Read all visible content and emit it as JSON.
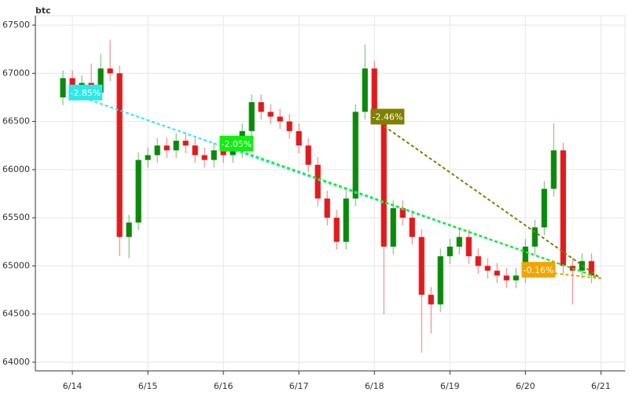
{
  "chart_data": {
    "type": "candlestick",
    "title": "btc",
    "x": [
      13.875,
      14,
      14.125,
      14.25,
      14.375,
      14.5,
      14.625,
      14.75,
      14.875,
      15,
      15.125,
      15.25,
      15.375,
      15.5,
      15.625,
      15.75,
      15.875,
      16,
      16.125,
      16.25,
      16.375,
      16.5,
      16.625,
      16.75,
      16.875,
      17,
      17.125,
      17.25,
      17.375,
      17.5,
      17.625,
      17.75,
      17.875,
      18,
      18.125,
      18.25,
      18.375,
      18.5,
      18.625,
      18.75,
      18.875,
      19,
      19.125,
      19.25,
      19.375,
      19.5,
      19.625,
      19.75,
      19.875,
      20,
      20.125,
      20.25,
      20.375,
      20.5,
      20.625,
      20.75,
      20.875
    ],
    "open": [
      66750,
      66950,
      66850,
      66900,
      66800,
      67050,
      67000,
      65300,
      65450,
      66100,
      66150,
      66250,
      66200,
      66300,
      66250,
      66150,
      66100,
      66200,
      66150,
      66200,
      66400,
      66700,
      66600,
      66550,
      66500,
      66400,
      66250,
      66050,
      65700,
      65500,
      65250,
      65700,
      66600,
      67050,
      66550,
      65200,
      65600,
      65500,
      65300,
      64700,
      64600,
      65100,
      65200,
      65300,
      65100,
      65000,
      64950,
      64900,
      64850,
      64900,
      65200,
      65400,
      65800,
      66200,
      65000,
      64950,
      65050
    ],
    "high": [
      67030,
      67030,
      66980,
      67100,
      67200,
      67350,
      67080,
      65530,
      66180,
      66230,
      66330,
      66330,
      66380,
      66380,
      66330,
      66230,
      66280,
      66280,
      66280,
      66480,
      66780,
      66780,
      66680,
      66630,
      66580,
      66480,
      66330,
      66130,
      65780,
      65580,
      65780,
      66680,
      67300,
      67130,
      66630,
      65680,
      65680,
      65580,
      65380,
      64780,
      65180,
      65280,
      65380,
      65380,
      65180,
      65080,
      65030,
      64980,
      64980,
      65280,
      65480,
      65880,
      66480,
      66280,
      65080,
      65130,
      65130
    ],
    "low": [
      66670,
      66770,
      66770,
      66720,
      66720,
      66920,
      65100,
      65080,
      65370,
      66020,
      66070,
      66120,
      66120,
      66170,
      66070,
      66020,
      66020,
      66070,
      66070,
      66120,
      66320,
      66520,
      66470,
      66420,
      66320,
      66170,
      65970,
      65620,
      65420,
      65170,
      65170,
      65620,
      66520,
      66470,
      64500,
      65120,
      65420,
      65220,
      64100,
      64300,
      64520,
      65020,
      65120,
      65020,
      64920,
      64870,
      64820,
      64770,
      64770,
      64820,
      65120,
      65320,
      65720,
      64920,
      64600,
      64870,
      64820
    ],
    "close": [
      66950,
      66850,
      66900,
      66800,
      67050,
      67000,
      65300,
      65450,
      66100,
      66150,
      66250,
      66200,
      66300,
      66250,
      66150,
      66100,
      66200,
      66150,
      66200,
      66400,
      66700,
      66600,
      66550,
      66500,
      66400,
      66250,
      66050,
      65700,
      65500,
      65250,
      65700,
      66600,
      67050,
      66550,
      65200,
      65600,
      65500,
      65300,
      64700,
      64600,
      65100,
      65200,
      65300,
      65100,
      65000,
      64950,
      64900,
      64850,
      64900,
      65200,
      65400,
      65800,
      66200,
      65000,
      64950,
      65050,
      64900
    ],
    "up_color": "#0a8a0a",
    "down_color": "#e31a1c",
    "xlim": [
      13.51,
      21.32
    ],
    "ylim": [
      63910,
      67598
    ],
    "xticks": [
      {
        "value": 14,
        "label": "6/14"
      },
      {
        "value": 15,
        "label": "6/15"
      },
      {
        "value": 16,
        "label": "6/16"
      },
      {
        "value": 17,
        "label": "6/17"
      },
      {
        "value": 18,
        "label": "6/18"
      },
      {
        "value": 19,
        "label": "6/19"
      },
      {
        "value": 20,
        "label": "6/20"
      },
      {
        "value": 21,
        "label": "6/21"
      }
    ],
    "yticks": [
      64000,
      64500,
      65000,
      65500,
      66000,
      66500,
      67000,
      67500
    ],
    "grid": true,
    "annotations": [
      {
        "label": "-2.85%",
        "color": "#2ee8e8",
        "x": 13.95,
        "y": 66800,
        "x_end": 21,
        "y_end": 64870
      },
      {
        "label": "-2.05%",
        "color": "#11ee11",
        "x": 15.95,
        "y": 66270,
        "x_end": 21,
        "y_end": 64870
      },
      {
        "label": "-2.46%",
        "color": "#808000",
        "x": 17.95,
        "y": 66550,
        "x_end": 21,
        "y_end": 64870
      },
      {
        "label": "-0.16%",
        "color": "#f0a500",
        "x": 19.95,
        "y": 64960,
        "x_end": 21,
        "y_end": 64870
      }
    ]
  }
}
